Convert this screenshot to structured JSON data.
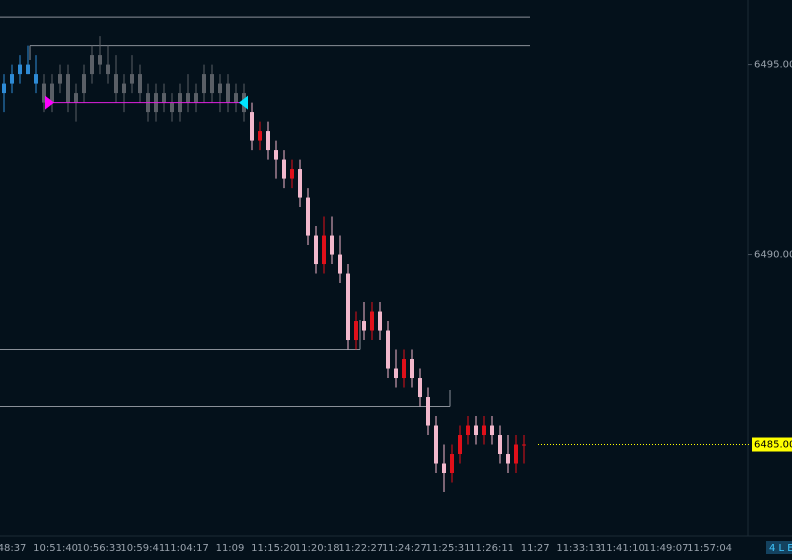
{
  "chart_data": {
    "type": "candlestick",
    "ylim": [
      6482.75,
      6496.7
    ],
    "yticks": [
      {
        "value": 6495,
        "label": "6495.00"
      },
      {
        "value": 6490,
        "label": "6490.00"
      }
    ],
    "last_price": {
      "value": 6485,
      "label": "6485.00",
      "color": "#ffff00"
    },
    "levels": {
      "color": "#8a9098",
      "values": [
        6496.25,
        6495.5,
        6487.5,
        6486.0
      ]
    },
    "trade_line": {
      "value": 6494.0,
      "color": "#e020e0",
      "entry_color": "#ff00ff",
      "exit_color": "#00e5ff"
    },
    "xlabels": [
      "48:37",
      "10:51:40",
      "10:56:33",
      "10:59:41",
      "11:04:17",
      "11:09",
      "11:15:20",
      "11:20:18",
      "11:22:27",
      "11:24:27",
      "11:25:31",
      "11:26:11",
      "11:27",
      "11:33:13",
      "11:41:10",
      "11:49:07",
      "11:57:04"
    ],
    "badge": "4 L E",
    "segments": [
      {
        "color": "#2e8bd6",
        "candles": [
          [
            6494.25,
            6494.75,
            6493.75,
            6494.5
          ],
          [
            6494.5,
            6495,
            6494.25,
            6494.75
          ],
          [
            6494.75,
            6495.25,
            6494.5,
            6495
          ],
          [
            6495,
            6495.5,
            6494.75,
            6494.75
          ],
          [
            6494.75,
            6495.25,
            6494.25,
            6494.5
          ]
        ]
      },
      {
        "color": "#5a5f66",
        "candles": [
          [
            6494.5,
            6494.75,
            6493.75,
            6494
          ],
          [
            6494,
            6494.75,
            6493.75,
            6494.5
          ],
          [
            6494.5,
            6495,
            6494.25,
            6494.75
          ],
          [
            6494.75,
            6495,
            6493.75,
            6494
          ],
          [
            6494,
            6494.5,
            6493.5,
            6494.25
          ],
          [
            6494.25,
            6495,
            6494,
            6494.75
          ],
          [
            6494.75,
            6495.5,
            6494.5,
            6495.25
          ],
          [
            6495.25,
            6495.75,
            6494.75,
            6495
          ],
          [
            6495,
            6495.5,
            6494.5,
            6494.75
          ],
          [
            6494.75,
            6495.25,
            6494,
            6494.25
          ],
          [
            6494.25,
            6494.75,
            6493.75,
            6494.5
          ],
          [
            6494.5,
            6495.25,
            6494.25,
            6494.75
          ],
          [
            6494.75,
            6495,
            6494,
            6494.25
          ],
          [
            6494.25,
            6494.5,
            6493.5,
            6493.75
          ],
          [
            6493.75,
            6494.5,
            6493.5,
            6494.25
          ],
          [
            6494.25,
            6494.5,
            6493.75,
            6494
          ],
          [
            6494,
            6494.25,
            6493.5,
            6493.75
          ],
          [
            6493.75,
            6494.5,
            6493.5,
            6494.25
          ],
          [
            6494.25,
            6494.75,
            6493.75,
            6494
          ],
          [
            6494,
            6494.5,
            6493.75,
            6494.25
          ],
          [
            6494.25,
            6495,
            6494,
            6494.75
          ],
          [
            6494.75,
            6495,
            6494,
            6494.25
          ],
          [
            6494.25,
            6494.75,
            6493.75,
            6494.5
          ],
          [
            6494.5,
            6494.75,
            6493.75,
            6494
          ],
          [
            6494,
            6494.5,
            6493.75,
            6494.25
          ],
          [
            6494.25,
            6494.5,
            6493.5,
            6493.75
          ]
        ]
      },
      {
        "up_color": "#e0101a",
        "down_color": "#f2b8cc",
        "candles": [
          [
            6493.75,
            6494,
            6492.75,
            6493
          ],
          [
            6493,
            6493.5,
            6492.75,
            6493.25
          ],
          [
            6493.25,
            6493.5,
            6492.5,
            6492.75
          ],
          [
            6492.75,
            6493,
            6492,
            6492.5
          ],
          [
            6492.5,
            6492.75,
            6491.75,
            6492
          ],
          [
            6492,
            6492.5,
            6491.75,
            6492.25
          ],
          [
            6492.25,
            6492.5,
            6491.25,
            6491.5
          ],
          [
            6491.5,
            6491.75,
            6490.25,
            6490.5
          ],
          [
            6490.5,
            6490.75,
            6489.5,
            6489.75
          ],
          [
            6489.75,
            6491,
            6489.5,
            6490.5
          ],
          [
            6490.5,
            6491,
            6489.75,
            6490
          ],
          [
            6490,
            6490.5,
            6489.25,
            6489.5
          ],
          [
            6489.5,
            6489.75,
            6487.5,
            6487.75
          ],
          [
            6487.75,
            6488.5,
            6487.5,
            6488.25
          ],
          [
            6488.25,
            6488.75,
            6487.75,
            6488
          ],
          [
            6488,
            6488.75,
            6487.75,
            6488.5
          ],
          [
            6488.5,
            6488.75,
            6487.75,
            6488
          ],
          [
            6488,
            6488.25,
            6486.75,
            6487
          ],
          [
            6487,
            6487.5,
            6486.5,
            6486.75
          ],
          [
            6486.75,
            6487.5,
            6486.5,
            6487.25
          ],
          [
            6487.25,
            6487.5,
            6486.5,
            6486.75
          ],
          [
            6486.75,
            6487,
            6486,
            6486.25
          ],
          [
            6486.25,
            6486.5,
            6485.25,
            6485.5
          ],
          [
            6485.5,
            6485.75,
            6484.25,
            6484.5
          ],
          [
            6484.5,
            6485,
            6483.75,
            6484.25
          ],
          [
            6484.25,
            6485,
            6484,
            6484.75
          ],
          [
            6484.75,
            6485.5,
            6484.5,
            6485.25
          ],
          [
            6485.25,
            6485.75,
            6485,
            6485.5
          ],
          [
            6485.5,
            6485.75,
            6485,
            6485.25
          ],
          [
            6485.25,
            6485.75,
            6485,
            6485.5
          ],
          [
            6485.5,
            6485.75,
            6485,
            6485.25
          ],
          [
            6485.25,
            6485.5,
            6484.5,
            6484.75
          ],
          [
            6484.75,
            6485.25,
            6484.25,
            6484.5
          ],
          [
            6484.5,
            6485.25,
            6484.25,
            6485
          ],
          [
            6485,
            6485.25,
            6484.5,
            6485
          ]
        ]
      }
    ]
  }
}
